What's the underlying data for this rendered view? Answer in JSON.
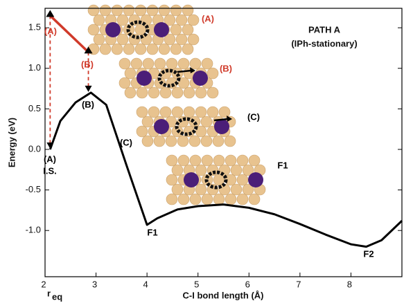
{
  "chart_data": {
    "type": "line",
    "title": "PATH A",
    "subtitle": "(IPh-stationary)",
    "x_label": "C-I bond length (Å)",
    "y_label": "Energy (eV)",
    "x_marker": {
      "label": "r",
      "subscript": "eq"
    },
    "xlim": [
      2,
      9
    ],
    "ylim": [
      -1.57,
      1.74
    ],
    "xticks": [
      2,
      3,
      4,
      5,
      6,
      7,
      8
    ],
    "yticks": [
      1.5,
      {
        "value": 1.0,
        "label": "1.0"
      },
      0.5,
      {
        "value": 0.0,
        "label": "0.0"
      },
      -0.5,
      {
        "value": -1.0,
        "label": "-1.0"
      }
    ],
    "series": [
      {
        "color": "#000000",
        "x": [
          2.1,
          2.3,
          2.6,
          2.9,
          3.2,
          3.6,
          4.0,
          4.2,
          4.6,
          5.0,
          5.5,
          6.0,
          6.5,
          7.0,
          7.5,
          8.0,
          8.3,
          8.6,
          9.0
        ],
        "values": [
          0.0,
          0.35,
          0.58,
          0.7,
          0.55,
          -0.2,
          -0.93,
          -0.85,
          -0.74,
          -0.7,
          -0.68,
          -0.72,
          -0.8,
          -0.92,
          -1.05,
          -1.17,
          -1.2,
          -1.12,
          -0.88
        ]
      },
      {
        "color": "#d03a2a",
        "x": [
          2.1,
          2.85
        ],
        "values": [
          1.65,
          1.2
        ]
      }
    ],
    "annotations": [
      {
        "text": "(A)",
        "color": "#d03a2a"
      },
      {
        "text": "(B)",
        "color": "#d03a2a"
      },
      {
        "text": "(B)",
        "color": "#000000"
      },
      {
        "text": "(A)",
        "color": "#000000"
      },
      {
        "text": "I.S.",
        "color": "#000000"
      },
      {
        "text": "(C)",
        "color": "#000000"
      },
      {
        "text": "F1",
        "color": "#000000"
      },
      {
        "text": "F2",
        "color": "#000000"
      },
      {
        "text": "(A)",
        "color": "#d03a2a"
      },
      {
        "text": "(B)",
        "color": "#d03a2a"
      },
      {
        "text": "(C)",
        "color": "#000000"
      },
      {
        "text": "F1",
        "color": "#000000"
      }
    ]
  }
}
